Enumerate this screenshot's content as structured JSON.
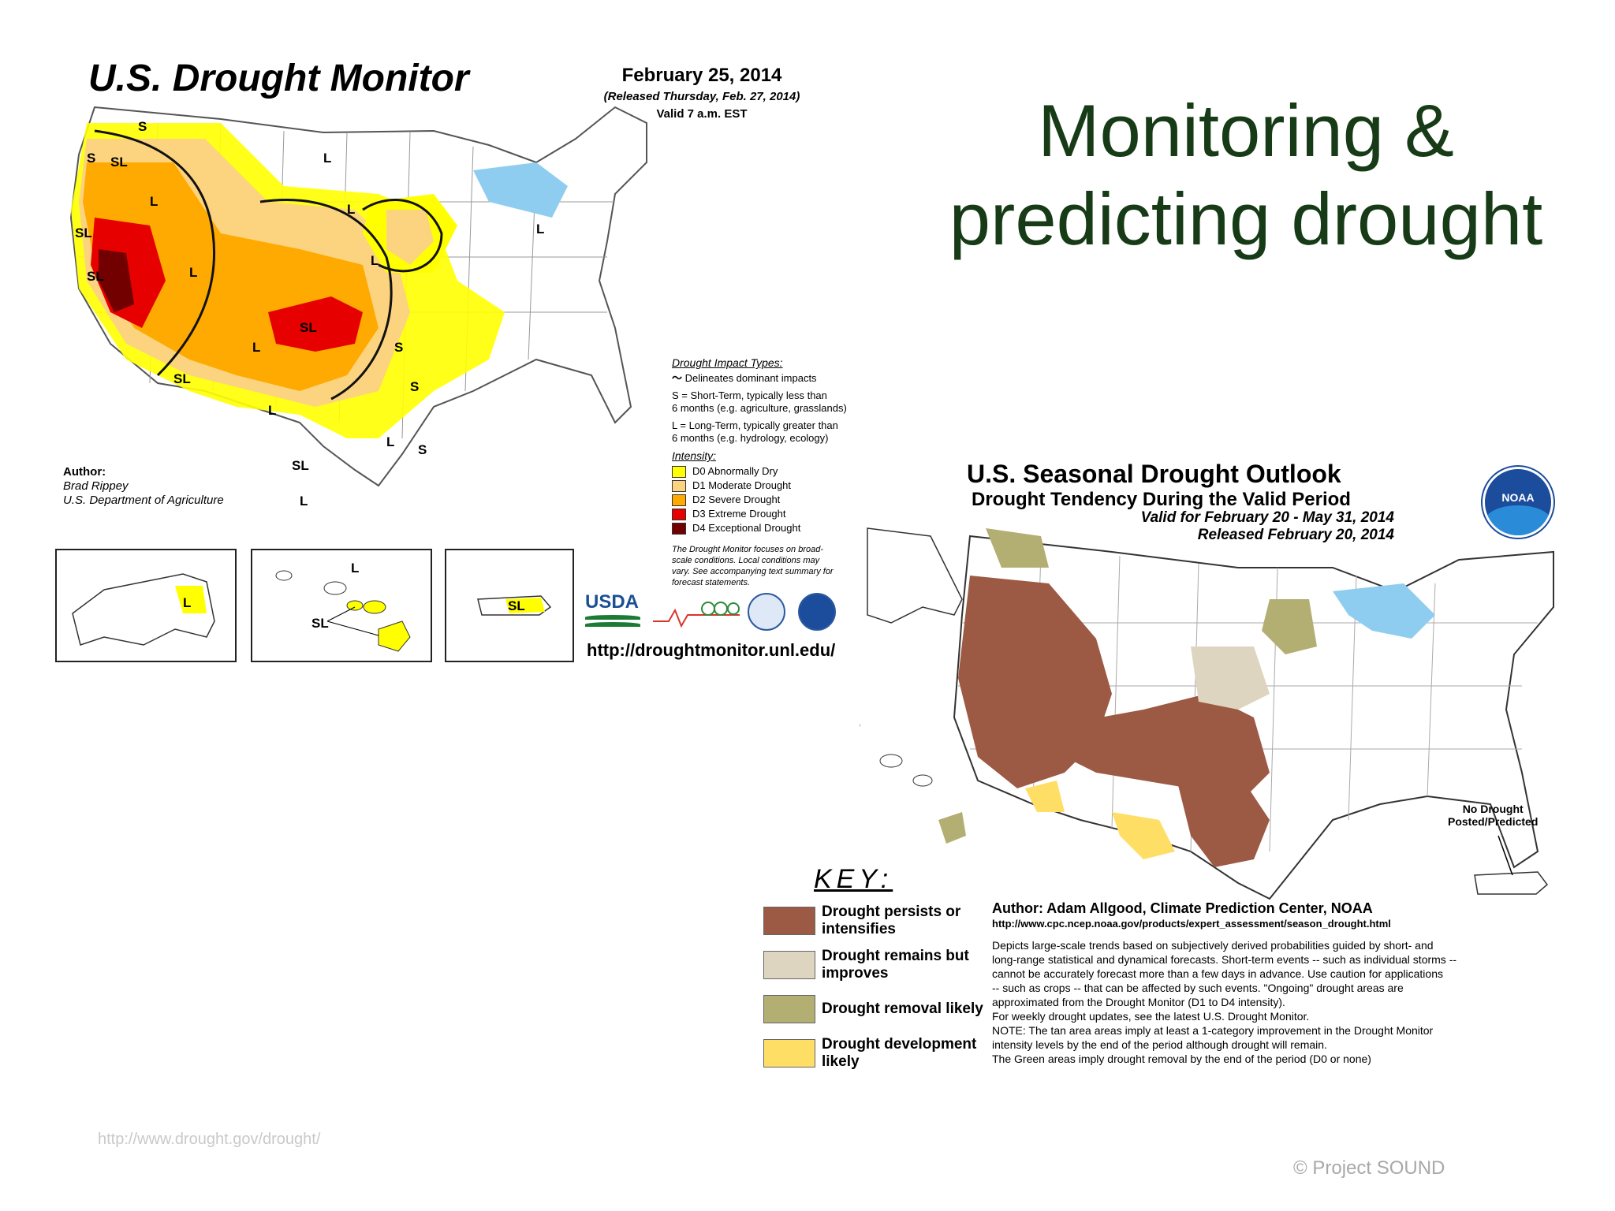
{
  "slide": {
    "title_line1": "Monitoring &",
    "title_line2": "predicting drought",
    "footer_url": "http://www.drought.gov/drought/",
    "copyright": "© Project  SOUND"
  },
  "drought_monitor": {
    "title": "U.S. Drought Monitor",
    "date": "February 25, 2014",
    "released": "(Released Thursday, Feb. 27, 2014)",
    "valid": "Valid 7 a.m. EST",
    "impact_types_title": "Drought Impact Types:",
    "impact_line": "Delineates dominant impacts",
    "s_def_1": "S = Short-Term, typically less than",
    "s_def_2": "6 months (e.g. agriculture, grasslands)",
    "l_def_1": "L = Long-Term, typically greater than",
    "l_def_2": "6 months (e.g. hydrology, ecology)",
    "intensity_title": "Intensity:",
    "intensity": [
      {
        "label": "D0 Abnormally Dry",
        "color": "#ffff00"
      },
      {
        "label": "D1 Moderate Drought",
        "color": "#fcd37f"
      },
      {
        "label": "D2 Severe Drought",
        "color": "#ffaa00"
      },
      {
        "label": "D3 Extreme Drought",
        "color": "#e60000"
      },
      {
        "label": "D4 Exceptional Drought",
        "color": "#730000"
      }
    ],
    "note_1": "The Drought Monitor focuses on broad-",
    "note_2": "scale conditions. Local conditions may",
    "note_3": "vary. See accompanying text summary for",
    "note_4": "forecast statements.",
    "author_label": "Author:",
    "author_name": "Brad Rippey",
    "author_org": "U.S. Department of Agriculture",
    "url": "http://droughtmonitor.unl.edu/",
    "usda_logo_text": "USDA",
    "map_labels": [
      "S",
      "S",
      "SL",
      "L",
      "SL",
      "SL",
      "L",
      "L",
      "L",
      "L",
      "SL",
      "L",
      "S",
      "SL",
      "L",
      "S",
      "SL",
      "S",
      "L",
      "L",
      "L"
    ],
    "inset_labels": [
      "L",
      "L",
      "SL",
      "SL"
    ]
  },
  "seasonal_outlook": {
    "title": "U.S. Seasonal Drought Outlook",
    "subtitle": "Drought Tendency During the Valid Period",
    "valid": "Valid for February 20 - May 31, 2014",
    "released": "Released February 20, 2014",
    "noaa_logo_text": "NOAA",
    "no_drought_1": "No Drought",
    "no_drought_2": "Posted/Predicted",
    "key_title": "KEY:",
    "key": [
      {
        "label_1": "Drought persists or",
        "label_2": "intensifies",
        "color": "#9c5a44"
      },
      {
        "label_1": "Drought remains but",
        "label_2": "improves",
        "color": "#ded5c0"
      },
      {
        "label_1": "Drought removal likely",
        "label_2": "",
        "color": "#b3ae72"
      },
      {
        "label_1": "Drought development",
        "label_2": "likely",
        "color": "#ffde66"
      }
    ],
    "author": "Author: Adam Allgood, Climate Prediction Center, NOAA",
    "author_url": "http://www.cpc.ncep.noaa.gov/products/expert_assessment/season_drought.html",
    "desc_1": "Depicts large-scale trends based on subjectively derived probabilities guided by short- and",
    "desc_2": "long-range statistical and dynamical forecasts. Short-term events -- such as individual storms --",
    "desc_3": "cannot be accurately forecast more than a few days in advance. Use caution for applications",
    "desc_4": "-- such as crops -- that can be affected by such events. \"Ongoing\" drought areas are",
    "desc_5": "approximated from the Drought Monitor (D1 to D4 intensity).",
    "desc_6": "For weekly drought updates, see the latest U.S. Drought Monitor.",
    "desc_7": "NOTE: The tan area areas imply at least a 1-category improvement in the Drought Monitor",
    "desc_8": "intensity levels by the end of the period although drought will remain.",
    "desc_9": "The Green areas imply drought removal by the end of the period (D0 or none)"
  }
}
